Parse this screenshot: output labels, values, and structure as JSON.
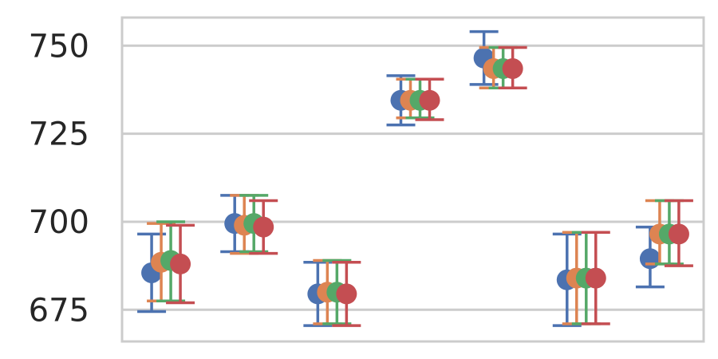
{
  "chart_data": {
    "type": "scatter",
    "title": "",
    "xlabel": "",
    "ylabel": "",
    "ylim": [
      666,
      758
    ],
    "yticks": [
      675,
      700,
      725,
      750
    ],
    "grid": true,
    "legend": "none",
    "group_count": 7,
    "series": [
      {
        "color": "#4c72b0",
        "values": [
          685.5,
          699.5,
          679.5,
          734.5,
          746.5,
          683.5,
          689.5
        ],
        "lower": [
          674.5,
          691.5,
          670.5,
          727.5,
          739.0,
          670.5,
          681.5
        ],
        "upper": [
          696.5,
          707.5,
          688.5,
          741.5,
          754.0,
          696.5,
          698.5
        ]
      },
      {
        "color": "#dd8452",
        "values": [
          688.5,
          699.0,
          680.0,
          734.5,
          743.5,
          684.0,
          696.5
        ],
        "lower": [
          677.5,
          691.0,
          671.0,
          729.5,
          738.0,
          671.0,
          688.0
        ],
        "upper": [
          699.5,
          707.5,
          689.0,
          740.5,
          749.5,
          697.0,
          706.0
        ]
      },
      {
        "color": "#55a868",
        "values": [
          689.0,
          699.5,
          680.0,
          734.5,
          743.5,
          684.0,
          696.5
        ],
        "lower": [
          677.5,
          691.5,
          671.0,
          729.5,
          738.0,
          671.0,
          688.0
        ],
        "upper": [
          700.0,
          707.5,
          689.0,
          740.5,
          749.5,
          697.0,
          706.0
        ]
      },
      {
        "color": "#c44e52",
        "values": [
          688.0,
          698.5,
          679.5,
          734.5,
          743.5,
          684.0,
          696.5
        ],
        "lower": [
          677.0,
          691.0,
          670.5,
          729.0,
          738.0,
          671.0,
          687.5
        ],
        "upper": [
          699.0,
          706.0,
          688.5,
          740.5,
          749.5,
          697.0,
          706.0
        ]
      }
    ]
  }
}
